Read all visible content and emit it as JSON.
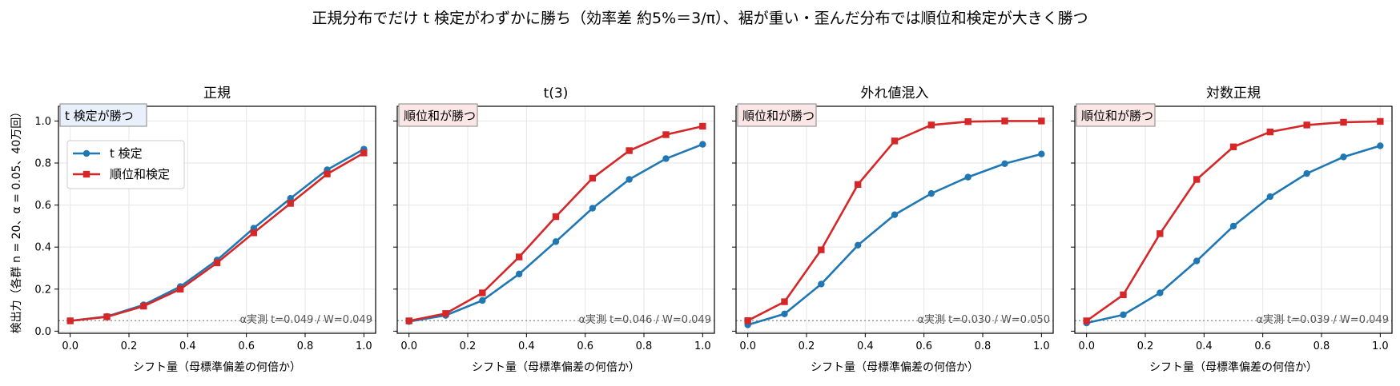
{
  "figure": {
    "suptitle": "正規分布でだけ t 検定がわずかに勝ち（効率差 約5%＝3/π）、裾が重い・歪んだ分布では順位和検定が大きく勝つ",
    "colors": {
      "t_test": "#1f77b4",
      "rank_sum": "#d62728",
      "blue_box": "#e8f0fb",
      "red_box": "#fbe6e6"
    }
  },
  "chart_data": [
    {
      "type": "line",
      "title": "正規",
      "xlabel": "シフト量（母標準偏差の何倍か）",
      "ylabel": "検出力（各群 n = 20、α = 0.05、40万回）",
      "xlim": [
        -0.04,
        1.04
      ],
      "ylim": [
        -0.01,
        1.07
      ],
      "x": [
        0,
        0.125,
        0.25,
        0.375,
        0.5,
        0.625,
        0.75,
        0.875,
        1.0
      ],
      "series": [
        {
          "name": "t 検定",
          "values": [
            0.049,
            0.07,
            0.125,
            0.212,
            0.338,
            0.49,
            0.632,
            0.768,
            0.866
          ]
        },
        {
          "name": "順位和検定",
          "values": [
            0.049,
            0.068,
            0.119,
            0.2,
            0.325,
            0.468,
            0.608,
            0.748,
            0.848
          ]
        }
      ],
      "reference_line": 0.05,
      "winner_label": "t 検定が勝つ",
      "winner": "t",
      "alpha_note": "α実測 t=0.049 / W=0.049",
      "legend": "upper-left",
      "grid": true
    },
    {
      "type": "line",
      "title": "t(3)",
      "xlabel": "シフト量（母標準偏差の何倍か）",
      "xlim": [
        -0.04,
        1.04
      ],
      "ylim": [
        -0.01,
        1.07
      ],
      "x": [
        0,
        0.125,
        0.25,
        0.375,
        0.5,
        0.625,
        0.75,
        0.875,
        1.0
      ],
      "series": [
        {
          "name": "t 検定",
          "values": [
            0.046,
            0.075,
            0.146,
            0.272,
            0.426,
            0.585,
            0.722,
            0.821,
            0.889
          ]
        },
        {
          "name": "順位和検定",
          "values": [
            0.049,
            0.084,
            0.182,
            0.353,
            0.545,
            0.728,
            0.859,
            0.935,
            0.975
          ]
        }
      ],
      "reference_line": 0.05,
      "winner_label": "順位和が勝つ",
      "winner": "w",
      "alpha_note": "α実測 t=0.046 / W=0.049",
      "grid": true
    },
    {
      "type": "line",
      "title": "外れ値混入",
      "xlabel": "シフト量（母標準偏差の何倍か）",
      "xlim": [
        -0.04,
        1.04
      ],
      "ylim": [
        -0.01,
        1.07
      ],
      "x": [
        0,
        0.125,
        0.25,
        0.375,
        0.5,
        0.625,
        0.75,
        0.875,
        1.0
      ],
      "series": [
        {
          "name": "t 検定",
          "values": [
            0.03,
            0.082,
            0.224,
            0.409,
            0.554,
            0.655,
            0.733,
            0.797,
            0.843
          ]
        },
        {
          "name": "順位和検定",
          "values": [
            0.05,
            0.14,
            0.387,
            0.698,
            0.905,
            0.981,
            0.997,
            1.0,
            1.0
          ]
        }
      ],
      "reference_line": 0.05,
      "winner_label": "順位和が勝つ",
      "winner": "w",
      "alpha_note": "α実測 t=0.030 / W=0.050",
      "grid": true
    },
    {
      "type": "line",
      "title": "対数正規",
      "xlabel": "シフト量（母標準偏差の何倍か）",
      "xlim": [
        -0.04,
        1.04
      ],
      "ylim": [
        -0.01,
        1.07
      ],
      "x": [
        0,
        0.125,
        0.25,
        0.375,
        0.5,
        0.625,
        0.75,
        0.875,
        1.0
      ],
      "series": [
        {
          "name": "t 検定",
          "values": [
            0.039,
            0.078,
            0.182,
            0.334,
            0.5,
            0.64,
            0.75,
            0.829,
            0.882
          ]
        },
        {
          "name": "順位和検定",
          "values": [
            0.049,
            0.173,
            0.464,
            0.722,
            0.877,
            0.948,
            0.981,
            0.994,
            0.998
          ]
        }
      ],
      "reference_line": 0.05,
      "winner_label": "順位和が勝つ",
      "winner": "w",
      "alpha_note": "α実測 t=0.039 / W=0.049",
      "grid": true
    }
  ]
}
